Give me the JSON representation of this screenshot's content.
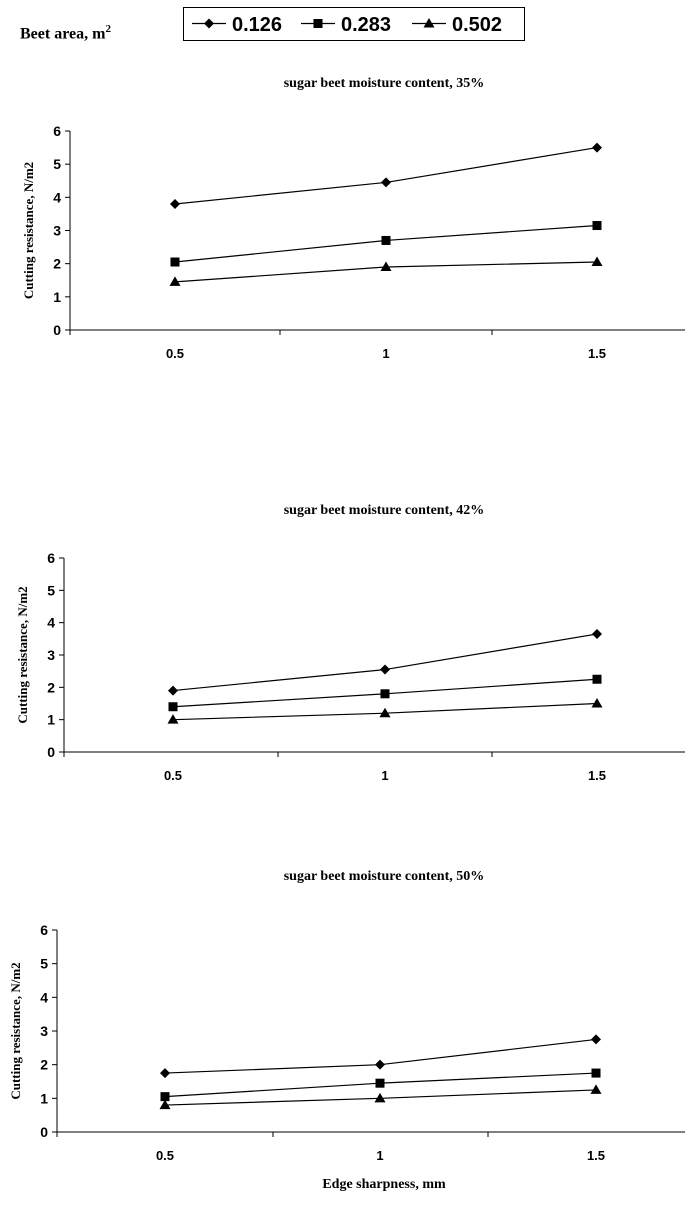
{
  "legend": {
    "title": "Beet area, m",
    "title_sup": "2",
    "entries": [
      {
        "label": "0.126",
        "marker": "diamond"
      },
      {
        "label": "0.283",
        "marker": "square"
      },
      {
        "label": "0.502",
        "marker": "triangle"
      }
    ]
  },
  "x_axis_title": "Edge sharpness, mm",
  "chart_data": [
    {
      "type": "line",
      "title": "sugar beet moisture content, 35%",
      "ylabel": "Cutting resistance, N/m2",
      "xlabel": "",
      "categories": [
        "0.5",
        "1",
        "1.5"
      ],
      "ylim": [
        0,
        6
      ],
      "yticks": [
        0,
        1,
        2,
        3,
        4,
        5,
        6
      ],
      "grid": false,
      "series": [
        {
          "name": "0.126",
          "marker": "diamond",
          "values": [
            3.8,
            4.45,
            5.5
          ]
        },
        {
          "name": "0.283",
          "marker": "square",
          "values": [
            2.05,
            2.7,
            3.15
          ]
        },
        {
          "name": "0.502",
          "marker": "triangle",
          "values": [
            1.45,
            1.9,
            2.05
          ]
        }
      ]
    },
    {
      "type": "line",
      "title": "sugar beet moisture content, 42%",
      "ylabel": "Cutting resistance, N/m2",
      "xlabel": "",
      "categories": [
        "0.5",
        "1",
        "1.5"
      ],
      "ylim": [
        0,
        6
      ],
      "yticks": [
        0,
        1,
        2,
        3,
        4,
        5,
        6
      ],
      "grid": false,
      "series": [
        {
          "name": "0.126",
          "marker": "diamond",
          "values": [
            1.9,
            2.55,
            3.65
          ]
        },
        {
          "name": "0.283",
          "marker": "square",
          "values": [
            1.4,
            1.8,
            2.25
          ]
        },
        {
          "name": "0.502",
          "marker": "triangle",
          "values": [
            1.0,
            1.2,
            1.5
          ]
        }
      ]
    },
    {
      "type": "line",
      "title": "sugar beet moisture content, 50%",
      "ylabel": "Cutting resistance, N/m2",
      "xlabel": "Edge sharpness, mm",
      "categories": [
        "0.5",
        "1",
        "1.5"
      ],
      "ylim": [
        0,
        6
      ],
      "yticks": [
        0,
        1,
        2,
        3,
        4,
        5,
        6
      ],
      "grid": false,
      "series": [
        {
          "name": "0.126",
          "marker": "diamond",
          "values": [
            1.75,
            2.0,
            2.75
          ]
        },
        {
          "name": "0.283",
          "marker": "square",
          "values": [
            1.05,
            1.45,
            1.75
          ]
        },
        {
          "name": "0.502",
          "marker": "triangle",
          "values": [
            0.8,
            1.0,
            1.25
          ]
        }
      ]
    }
  ]
}
